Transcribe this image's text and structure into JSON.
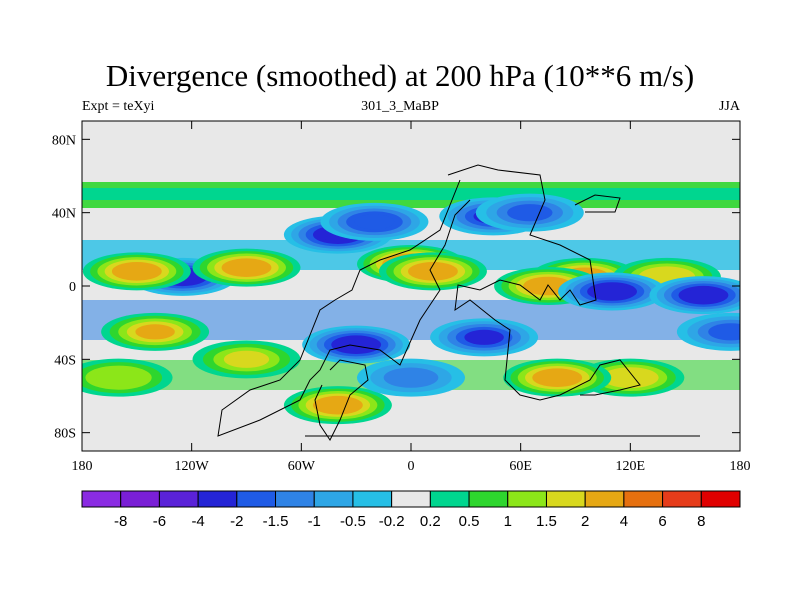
{
  "chart_data": {
    "type": "heatmap",
    "title": "Divergence (smoothed) at 200 hPa (10**6 m/s)",
    "subtitle_left": "Expt = teXyi",
    "subtitle_center": "301_3_MaBP",
    "subtitle_right": "JJA",
    "x_ticks": [
      {
        "value": -180,
        "label": "180"
      },
      {
        "value": -120,
        "label": "120W"
      },
      {
        "value": -60,
        "label": "60W"
      },
      {
        "value": 0,
        "label": "0"
      },
      {
        "value": 60,
        "label": "60E"
      },
      {
        "value": 120,
        "label": "120E"
      },
      {
        "value": 180,
        "label": "180"
      }
    ],
    "y_ticks": [
      {
        "value": 80,
        "label": "80N"
      },
      {
        "value": 40,
        "label": "40N"
      },
      {
        "value": 0,
        "label": "0"
      },
      {
        "value": -40,
        "label": "40S"
      },
      {
        "value": -80,
        "label": "80S"
      }
    ],
    "xlim": [
      -180,
      180
    ],
    "ylim": [
      -90,
      90
    ],
    "colorbar": {
      "colors": [
        "#8a2be2",
        "#7a1fd6",
        "#5a22d8",
        "#2424d6",
        "#1f5be6",
        "#2f83e6",
        "#2ea6e6",
        "#26bfe6",
        "#e8e8e8",
        "#00d68f",
        "#2ed62e",
        "#8ce619",
        "#d8d81e",
        "#e6a814",
        "#e6700f",
        "#e63c1a",
        "#e00000"
      ],
      "labels": [
        "-8",
        "-6",
        "-4",
        "-2",
        "-1.5",
        "-1",
        "-0.5",
        "-0.2",
        "0.2",
        "0.5",
        "1",
        "1.5",
        "2",
        "4",
        "6",
        "8"
      ]
    },
    "features": [
      {
        "lon": -125,
        "lat": 5,
        "level": -3
      },
      {
        "lon": -150,
        "lat": 8,
        "level": 2.5
      },
      {
        "lon": -90,
        "lat": 10,
        "level": 2.2
      },
      {
        "lon": -40,
        "lat": 28,
        "level": -2.5
      },
      {
        "lon": -20,
        "lat": 35,
        "level": -1.8
      },
      {
        "lon": 0,
        "lat": 12,
        "level": 5
      },
      {
        "lon": 12,
        "lat": 8,
        "level": 3
      },
      {
        "lon": 45,
        "lat": 38,
        "level": -2
      },
      {
        "lon": 65,
        "lat": 40,
        "level": -1.5
      },
      {
        "lon": 95,
        "lat": 5,
        "level": 3.5
      },
      {
        "lon": 75,
        "lat": 0,
        "level": 2.5
      },
      {
        "lon": 140,
        "lat": 5,
        "level": 1.8
      },
      {
        "lon": 110,
        "lat": -3,
        "level": -3
      },
      {
        "lon": 160,
        "lat": -5,
        "level": -2.5
      },
      {
        "lon": -30,
        "lat": -32,
        "level": -2.8
      },
      {
        "lon": 40,
        "lat": -28,
        "level": -2
      },
      {
        "lon": -40,
        "lat": -65,
        "level": 3
      },
      {
        "lon": -90,
        "lat": -40,
        "level": 1.5
      },
      {
        "lon": -140,
        "lat": -25,
        "level": 2
      },
      {
        "lon": 120,
        "lat": -50,
        "level": 1.6
      },
      {
        "lon": 80,
        "lat": -50,
        "level": 2.5
      },
      {
        "lon": 0,
        "lat": -50,
        "level": -1
      },
      {
        "lon": -160,
        "lat": -50,
        "level": 1.2
      },
      {
        "lon": 175,
        "lat": -25,
        "level": -1.5
      }
    ]
  }
}
